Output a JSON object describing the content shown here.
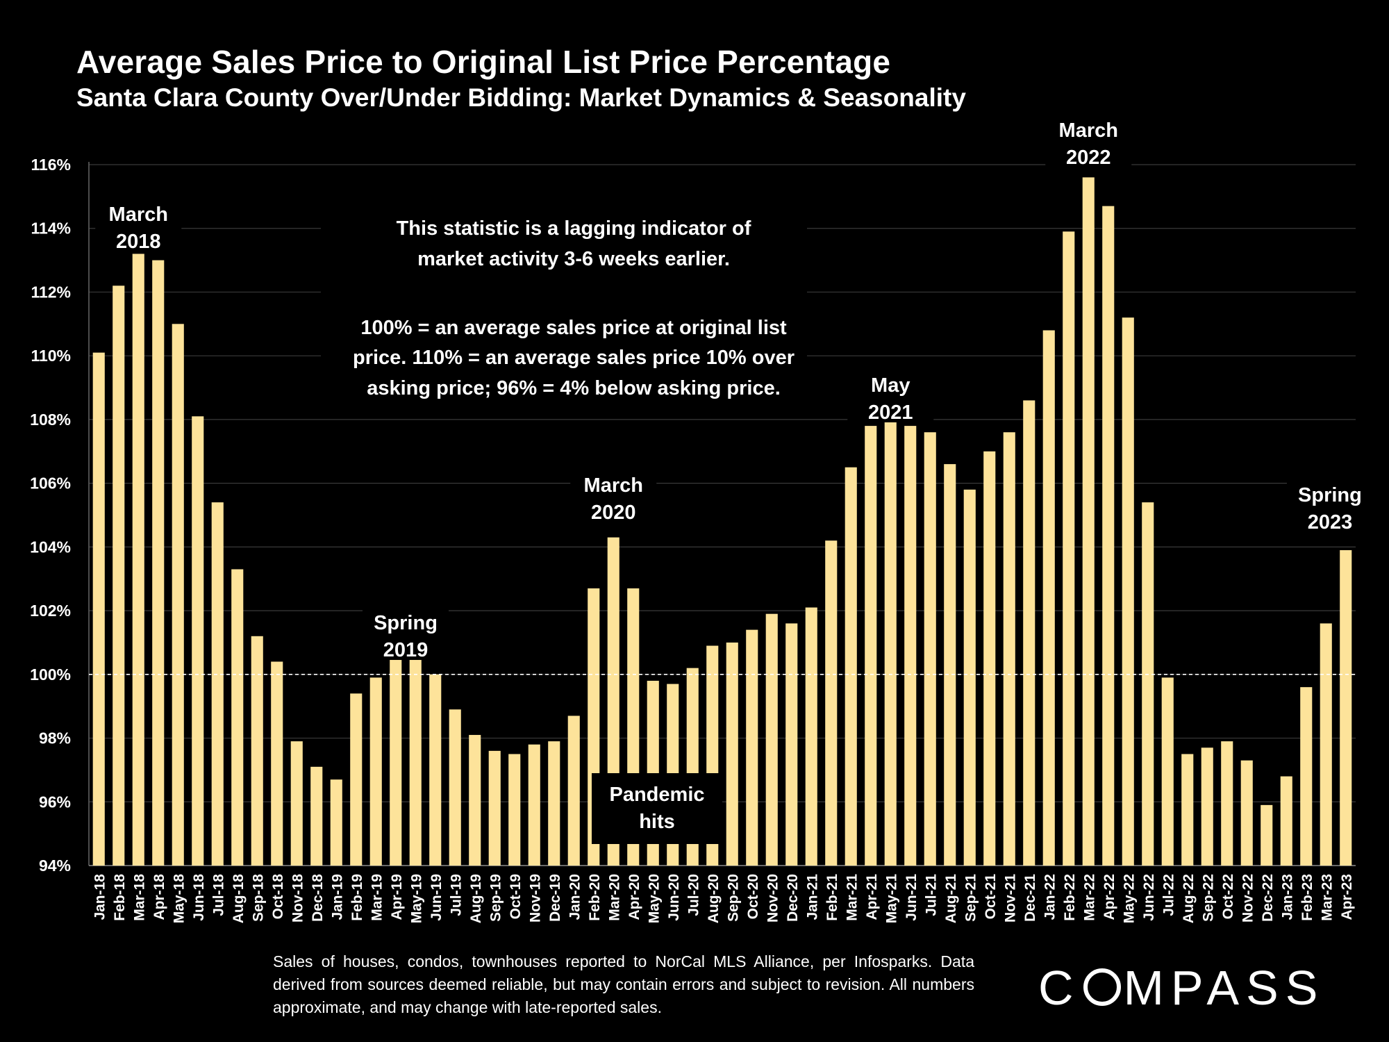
{
  "title": "Average Sales Price to Original List Price Percentage",
  "subtitle": "Santa Clara County Over/Under Bidding: Market Dynamics & Seasonality",
  "footnote": "Sales of houses, condos, townhouses reported to NorCal MLS Alliance, per Infosparks. Data derived from sources deemed reliable, but may contain errors and subject to revision. All numbers approximate, and may change with late-reported sales.",
  "logo": {
    "prefix": "C",
    "suffix": "MPASS"
  },
  "colors": {
    "bar": "#fde39a",
    "background": "#000000",
    "grid": "#3a3a3a",
    "reference_line": "#ffffff"
  },
  "chart_data": {
    "type": "bar",
    "ylim": [
      94,
      116
    ],
    "yticks": [
      "94%",
      "96%",
      "98%",
      "100%",
      "102%",
      "104%",
      "106%",
      "108%",
      "110%",
      "112%",
      "114%",
      "116%"
    ],
    "reference_line": 100,
    "grid": true,
    "categories": [
      "Jan-18",
      "Feb-18",
      "Mar-18",
      "Apr-18",
      "May-18",
      "Jun-18",
      "Jul-18",
      "Aug-18",
      "Sep-18",
      "Oct-18",
      "Nov-18",
      "Dec-18",
      "Jan-19",
      "Feb-19",
      "Mar-19",
      "Apr-19",
      "May-19",
      "Jun-19",
      "Jul-19",
      "Aug-19",
      "Sep-19",
      "Oct-19",
      "Nov-19",
      "Dec-19",
      "Jan-20",
      "Feb-20",
      "Mar-20",
      "Apr-20",
      "May-20",
      "Jun-20",
      "Jul-20",
      "Aug-20",
      "Sep-20",
      "Oct-20",
      "Nov-20",
      "Dec-20",
      "Jan-21",
      "Feb-21",
      "Mar-21",
      "Apr-21",
      "May-21",
      "Jun-21",
      "Jul-21",
      "Aug-21",
      "Sep-21",
      "Oct-21",
      "Nov-21",
      "Dec-21",
      "Jan-22",
      "Feb-22",
      "Mar-22",
      "Apr-22",
      "May-22",
      "Jun-22",
      "Jul-22",
      "Aug-22",
      "Sep-22",
      "Oct-22",
      "Nov-22",
      "Dec-22",
      "Jan-23",
      "Feb-23",
      "Mar-23",
      "Apr-23"
    ],
    "values": [
      110.1,
      112.2,
      113.2,
      113.0,
      111.0,
      108.1,
      105.4,
      103.3,
      101.2,
      100.4,
      97.9,
      97.1,
      96.7,
      99.4,
      99.9,
      100.8,
      100.8,
      100.0,
      98.9,
      98.1,
      97.6,
      97.5,
      97.8,
      97.9,
      98.7,
      102.7,
      104.3,
      102.7,
      99.8,
      99.7,
      100.2,
      100.9,
      101.0,
      101.4,
      101.9,
      101.6,
      102.1,
      104.2,
      106.5,
      107.8,
      108.0,
      107.8,
      107.6,
      106.6,
      105.8,
      107.0,
      107.6,
      108.6,
      110.8,
      113.9,
      115.6,
      114.7,
      111.2,
      105.4,
      99.9,
      97.5,
      97.7,
      97.9,
      97.3,
      95.9,
      96.8,
      99.6,
      101.6,
      103.9
    ],
    "annotations": [
      {
        "lines": [
          "March",
          "2018"
        ],
        "index": 2
      },
      {
        "lines": [
          "Spring",
          "2019"
        ],
        "index": 15.5
      },
      {
        "lines": [
          "March",
          "2020"
        ],
        "index": 26
      },
      {
        "lines": [
          "May",
          "2021"
        ],
        "index": 40
      },
      {
        "lines": [
          "March",
          "2022"
        ],
        "index": 50
      },
      {
        "lines": [
          "Spring",
          "2023"
        ],
        "index": 62.2
      }
    ],
    "note_lines": [
      "This statistic is a lagging indicator of",
      "market activity 3-6 weeks earlier.",
      "",
      "100% = an average sales price at original list",
      "price. 110% = an average sales price 10% over",
      "asking price; 96% = 4% below asking price."
    ],
    "pandemic_lines": [
      "Pandemic",
      "hits"
    ]
  }
}
